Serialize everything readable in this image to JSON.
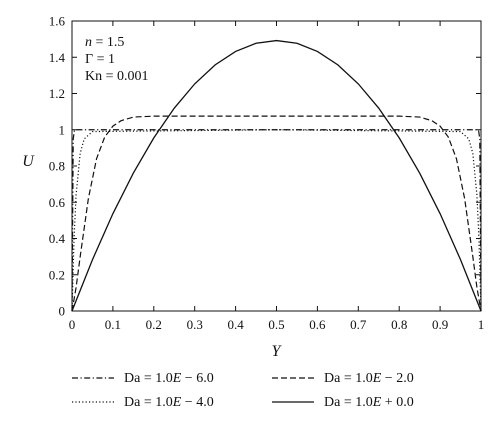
{
  "chart_data": {
    "type": "line",
    "xlabel": "Y",
    "ylabel": "U",
    "xlim": [
      0,
      1
    ],
    "ylim": [
      0,
      1.6
    ],
    "xticks": [
      "0",
      "0.1",
      "0.2",
      "0.3",
      "0.4",
      "0.5",
      "0.6",
      "0.7",
      "0.8",
      "0.9",
      "1"
    ],
    "yticks": [
      "0",
      "0.2",
      "0.4",
      "0.6",
      "0.8",
      "1",
      "1.2",
      "1.4",
      "1.6"
    ],
    "grid": false,
    "legend_position": "bottom",
    "annotations": {
      "n_label": "n",
      "n_value": " = 1.5",
      "gamma_line": "Γ = 1",
      "kn_line": "Kn = 0.001"
    },
    "series": [
      {
        "name": "Da = 1.0E − 6.0",
        "legend": {
          "prefix": "Da = 1.0",
          "e": "E",
          "suffix": " − 6.0"
        },
        "style": "dashdot",
        "x": [
          0,
          0.003,
          0.006,
          0.01,
          0.5,
          0.99,
          0.994,
          0.997,
          1
        ],
        "y": [
          0,
          0.95,
          0.998,
          1.0,
          1.0,
          1.0,
          0.998,
          0.95,
          0
        ]
      },
      {
        "name": "Da = 1.0E − 4.0",
        "legend": {
          "prefix": "Da = 1.0",
          "e": "E",
          "suffix": " − 4.0"
        },
        "style": "dotted",
        "x": [
          0,
          0.005,
          0.01,
          0.02,
          0.03,
          0.05,
          0.5,
          0.95,
          0.97,
          0.98,
          0.99,
          0.995,
          1
        ],
        "y": [
          0,
          0.4,
          0.64,
          0.87,
          0.95,
          0.99,
          1.0,
          0.99,
          0.95,
          0.87,
          0.64,
          0.4,
          0
        ]
      },
      {
        "name": "Da = 1.0E − 2.0",
        "legend": {
          "prefix": "Da = 1.0",
          "e": "E",
          "suffix": " − 2.0"
        },
        "style": "dashed",
        "x": [
          0,
          0.01,
          0.02,
          0.04,
          0.06,
          0.08,
          0.1,
          0.12,
          0.15,
          0.2,
          0.5,
          0.8,
          0.85,
          0.88,
          0.9,
          0.92,
          0.94,
          0.96,
          0.98,
          0.99,
          1
        ],
        "y": [
          0,
          0.13,
          0.3,
          0.62,
          0.84,
          0.96,
          1.02,
          1.05,
          1.07,
          1.075,
          1.075,
          1.075,
          1.07,
          1.05,
          1.02,
          0.96,
          0.84,
          0.62,
          0.3,
          0.13,
          0
        ]
      },
      {
        "name": "Da = 1.0E + 0.0",
        "legend": {
          "prefix": "Da = 1.0",
          "e": "E",
          "suffix": " + 0.0"
        },
        "style": "solid",
        "x": [
          0,
          0.05,
          0.1,
          0.15,
          0.2,
          0.25,
          0.3,
          0.35,
          0.4,
          0.45,
          0.5,
          0.55,
          0.6,
          0.65,
          0.7,
          0.75,
          0.8,
          0.85,
          0.9,
          0.95,
          1
        ],
        "y": [
          0,
          0.283,
          0.537,
          0.761,
          0.955,
          1.119,
          1.253,
          1.358,
          1.432,
          1.477,
          1.492,
          1.477,
          1.432,
          1.358,
          1.253,
          1.119,
          0.955,
          0.761,
          0.537,
          0.283,
          0
        ]
      }
    ]
  }
}
